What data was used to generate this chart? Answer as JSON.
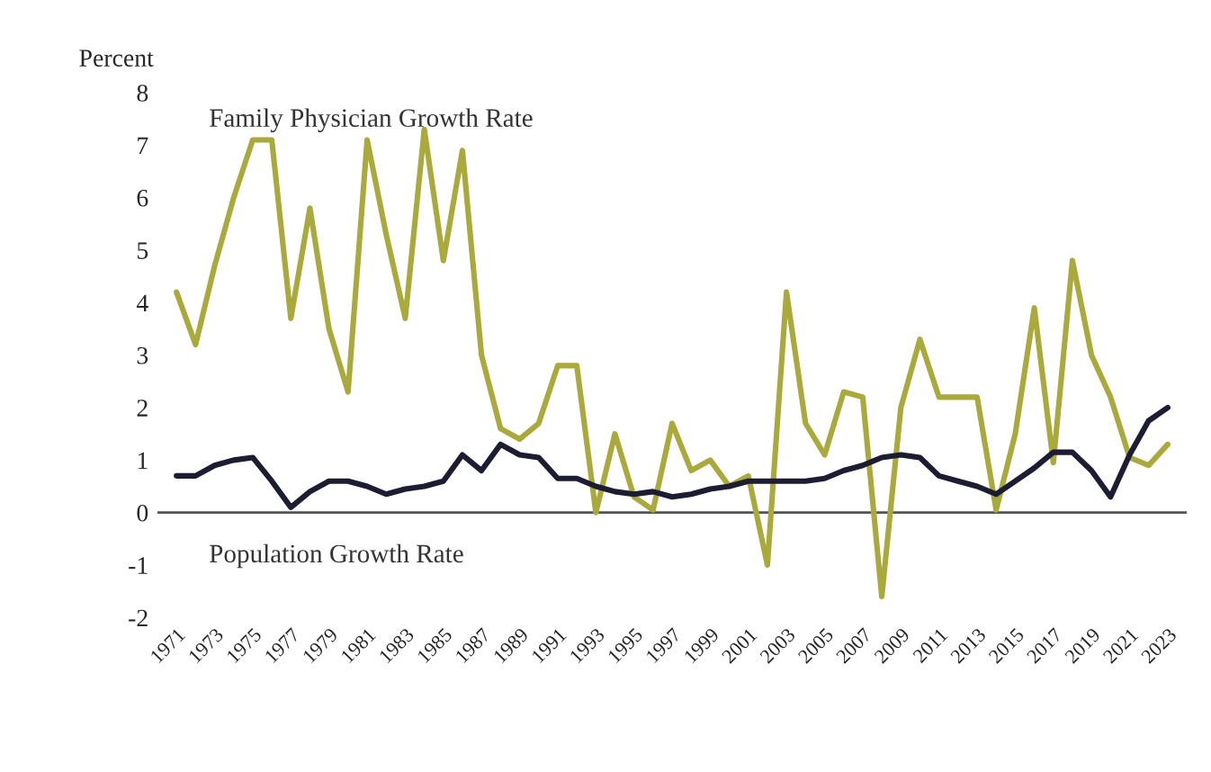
{
  "chart_data": {
    "type": "line",
    "ylabel": "Percent",
    "categories": [
      "1971",
      null,
      "1973",
      null,
      "1975",
      null,
      "1977",
      null,
      "1979",
      null,
      "1981",
      null,
      "1983",
      null,
      "1985",
      null,
      "1987",
      null,
      "1989",
      null,
      "1991",
      null,
      "1993",
      null,
      "1995",
      null,
      "1997",
      null,
      "1999",
      null,
      "2001",
      null,
      "2003",
      null,
      "2005",
      null,
      "2007",
      null,
      "2009",
      null,
      "2011",
      null,
      "2013",
      null,
      "2015",
      null,
      "2017",
      null,
      "2019",
      null,
      "2021",
      null,
      "2023"
    ],
    "series": [
      {
        "name": "Family Physician Growth Rate",
        "color": "#a9a93c",
        "values": [
          4.2,
          3.2,
          4.7,
          6.0,
          7.1,
          7.1,
          3.7,
          5.8,
          3.5,
          2.3,
          7.1,
          5.3,
          3.7,
          7.3,
          4.8,
          6.9,
          3.0,
          1.6,
          1.4,
          1.7,
          2.8,
          2.8,
          0.0,
          1.5,
          0.3,
          0.05,
          1.7,
          0.8,
          1.0,
          0.5,
          0.7,
          -1.0,
          4.2,
          1.7,
          1.1,
          2.3,
          2.2,
          -1.6,
          2.0,
          3.3,
          2.2,
          2.2,
          2.2,
          0.05,
          1.5,
          3.9,
          0.95,
          4.8,
          3.0,
          2.2,
          1.05,
          0.9,
          1.3
        ]
      },
      {
        "name": "Population Growth Rate",
        "color": "#1c1c33",
        "values": [
          0.7,
          0.7,
          0.9,
          1.0,
          1.05,
          0.6,
          0.1,
          0.4,
          0.6,
          0.6,
          0.5,
          0.35,
          0.45,
          0.5,
          0.6,
          1.1,
          0.8,
          1.3,
          1.1,
          1.05,
          0.65,
          0.65,
          0.5,
          0.4,
          0.35,
          0.4,
          0.3,
          0.35,
          0.45,
          0.5,
          0.6,
          0.6,
          0.6,
          0.6,
          0.65,
          0.8,
          0.9,
          1.05,
          1.1,
          1.05,
          0.7,
          0.6,
          0.5,
          0.35,
          0.6,
          0.85,
          1.15,
          1.15,
          0.8,
          0.3,
          1.1,
          1.75,
          2.0
        ]
      }
    ],
    "ylim": [
      -2,
      8
    ],
    "yticks": [
      -2,
      -1,
      0,
      1,
      2,
      3,
      4,
      5,
      6,
      7,
      8
    ],
    "ref_lines": [
      {
        "axis": "y",
        "value": 0,
        "color": "#555555"
      }
    ],
    "grid": false,
    "legend": false,
    "marker": "none",
    "line_style": "solid"
  }
}
